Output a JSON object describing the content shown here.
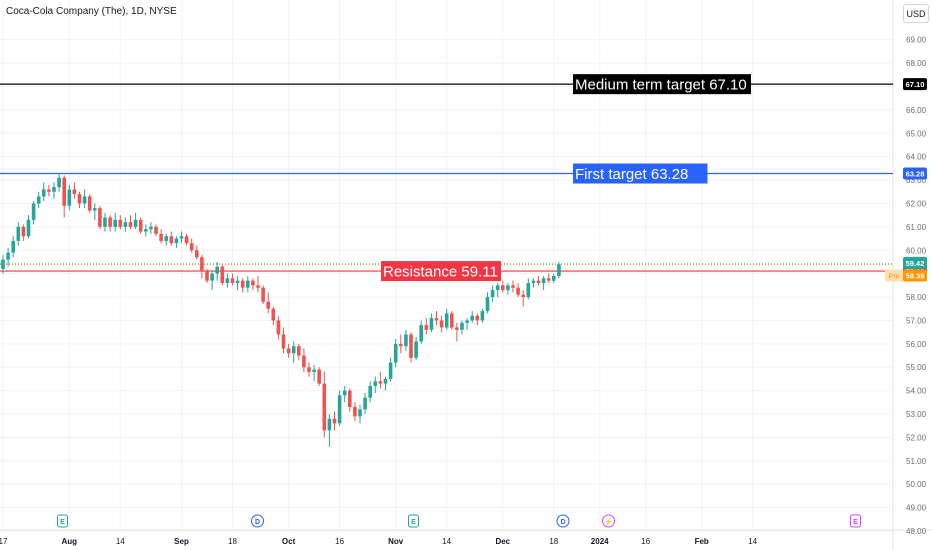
{
  "header": {
    "title": "Coca-Cola Company (The), 1D, NYSE",
    "currency": "USD"
  },
  "colors": {
    "up": "#26a69a",
    "down": "#ef5350",
    "target_medium": "#000000",
    "target_first": "#2962ff",
    "resistance": "#f23645",
    "pre": "#ff9800",
    "grid": "#f0f3fa",
    "text": "#131722"
  },
  "chart_data": {
    "type": "candlestick",
    "title": "Coca-Cola Company (The), 1D, NYSE",
    "ylim": [
      48.0,
      69.5
    ],
    "grid": true,
    "y_ticks": [
      "69.00",
      "68.00",
      "67.00",
      "66.00",
      "65.00",
      "64.00",
      "63.00",
      "62.00",
      "61.00",
      "60.00",
      "59.00",
      "58.00",
      "57.00",
      "56.00",
      "55.00",
      "54.00",
      "53.00",
      "52.00",
      "51.00",
      "50.00",
      "49.00",
      "48.00"
    ],
    "x_ticks": [
      "17",
      "Aug",
      "14",
      "Sep",
      "18",
      "Oct",
      "16",
      "Nov",
      "14",
      "Dec",
      "18",
      "2024",
      "16",
      "Feb",
      "14"
    ],
    "x_tick_index": [
      0,
      13,
      23,
      35,
      45,
      56,
      66,
      77,
      87,
      98,
      108,
      117,
      126,
      137,
      147
    ],
    "candles": [
      [
        59.2,
        59.8,
        59.0,
        59.6
      ],
      [
        59.6,
        60.1,
        59.3,
        59.9
      ],
      [
        59.9,
        60.6,
        59.7,
        60.4
      ],
      [
        60.4,
        61.2,
        60.2,
        61.0
      ],
      [
        61.0,
        61.1,
        60.4,
        60.6
      ],
      [
        60.6,
        61.5,
        60.5,
        61.3
      ],
      [
        61.3,
        62.1,
        61.1,
        62.0
      ],
      [
        62.0,
        62.5,
        61.8,
        62.3
      ],
      [
        62.3,
        62.9,
        62.1,
        62.6
      ],
      [
        62.6,
        62.8,
        62.3,
        62.5
      ],
      [
        62.5,
        62.9,
        62.2,
        62.7
      ],
      [
        62.7,
        63.3,
        62.5,
        63.1
      ],
      [
        63.1,
        63.2,
        61.4,
        61.9
      ],
      [
        61.9,
        62.8,
        61.7,
        62.6
      ],
      [
        62.6,
        62.9,
        62.2,
        62.4
      ],
      [
        62.4,
        62.5,
        61.8,
        62.0
      ],
      [
        62.0,
        62.6,
        61.8,
        62.3
      ],
      [
        62.3,
        62.4,
        61.6,
        61.7
      ],
      [
        61.7,
        62.0,
        61.3,
        61.8
      ],
      [
        61.8,
        61.9,
        60.9,
        61.0
      ],
      [
        61.0,
        61.6,
        60.8,
        61.4
      ],
      [
        61.4,
        61.5,
        60.8,
        61.0
      ],
      [
        61.0,
        61.6,
        60.8,
        61.3
      ],
      [
        61.3,
        61.5,
        60.9,
        61.0
      ],
      [
        61.0,
        61.4,
        60.8,
        61.2
      ],
      [
        61.2,
        61.5,
        60.9,
        61.0
      ],
      [
        61.0,
        61.6,
        60.9,
        61.3
      ],
      [
        61.3,
        61.4,
        60.7,
        60.8
      ],
      [
        60.8,
        61.1,
        60.6,
        60.9
      ],
      [
        60.9,
        61.2,
        60.7,
        61.0
      ],
      [
        61.0,
        61.1,
        60.6,
        60.7
      ],
      [
        60.7,
        60.9,
        60.3,
        60.4
      ],
      [
        60.4,
        60.7,
        60.2,
        60.6
      ],
      [
        60.6,
        60.8,
        60.2,
        60.3
      ],
      [
        60.3,
        60.6,
        60.1,
        60.5
      ],
      [
        60.5,
        60.8,
        60.3,
        60.6
      ],
      [
        60.6,
        60.7,
        60.2,
        60.3
      ],
      [
        60.3,
        60.5,
        59.9,
        60.0
      ],
      [
        60.0,
        60.2,
        59.6,
        59.7
      ],
      [
        59.7,
        59.8,
        58.8,
        59.1
      ],
      [
        59.1,
        59.2,
        58.6,
        58.7
      ],
      [
        58.7,
        59.1,
        58.3,
        59.0
      ],
      [
        59.0,
        59.5,
        58.7,
        59.3
      ],
      [
        59.3,
        59.4,
        58.5,
        58.6
      ],
      [
        58.6,
        59.0,
        58.4,
        58.8
      ],
      [
        58.8,
        59.0,
        58.5,
        58.6
      ],
      [
        58.6,
        58.9,
        58.3,
        58.7
      ],
      [
        58.7,
        58.8,
        58.2,
        58.4
      ],
      [
        58.4,
        58.9,
        58.2,
        58.7
      ],
      [
        58.7,
        58.8,
        58.3,
        58.5
      ],
      [
        58.5,
        58.9,
        58.2,
        58.4
      ],
      [
        58.4,
        58.5,
        57.7,
        57.8
      ],
      [
        57.8,
        58.2,
        57.3,
        57.5
      ],
      [
        57.5,
        57.6,
        56.8,
        57.0
      ],
      [
        57.0,
        57.2,
        56.2,
        56.4
      ],
      [
        56.4,
        56.7,
        55.6,
        55.8
      ],
      [
        55.8,
        56.0,
        55.4,
        55.6
      ],
      [
        55.6,
        56.1,
        55.2,
        55.9
      ],
      [
        55.9,
        56.0,
        55.3,
        55.5
      ],
      [
        55.5,
        55.8,
        54.8,
        55.0
      ],
      [
        55.0,
        55.2,
        54.6,
        54.8
      ],
      [
        54.8,
        55.1,
        54.4,
        54.9
      ],
      [
        54.9,
        55.0,
        54.2,
        54.3
      ],
      [
        54.3,
        54.8,
        52.0,
        52.3
      ],
      [
        52.3,
        53.0,
        51.6,
        52.8
      ],
      [
        52.8,
        53.1,
        52.3,
        52.6
      ],
      [
        52.6,
        54.0,
        52.5,
        53.8
      ],
      [
        53.8,
        54.2,
        53.5,
        54.0
      ],
      [
        54.0,
        54.1,
        53.1,
        53.3
      ],
      [
        53.3,
        53.5,
        52.7,
        52.9
      ],
      [
        52.9,
        53.4,
        52.6,
        53.2
      ],
      [
        53.2,
        53.9,
        53.0,
        53.7
      ],
      [
        53.7,
        54.4,
        53.5,
        54.2
      ],
      [
        54.2,
        54.6,
        53.9,
        54.4
      ],
      [
        54.4,
        54.8,
        54.1,
        54.3
      ],
      [
        54.3,
        54.6,
        54.0,
        54.5
      ],
      [
        54.5,
        55.4,
        54.4,
        55.2
      ],
      [
        55.2,
        56.2,
        55.0,
        56.0
      ],
      [
        56.0,
        56.4,
        55.6,
        55.9
      ],
      [
        55.9,
        56.6,
        55.7,
        56.4
      ],
      [
        56.4,
        56.5,
        55.2,
        55.4
      ],
      [
        55.4,
        56.3,
        55.3,
        56.1
      ],
      [
        56.1,
        57.0,
        56.0,
        56.8
      ],
      [
        56.8,
        57.1,
        56.4,
        56.6
      ],
      [
        56.6,
        57.3,
        56.5,
        57.1
      ],
      [
        57.1,
        57.4,
        56.8,
        57.0
      ],
      [
        57.0,
        57.2,
        56.5,
        56.7
      ],
      [
        56.7,
        57.5,
        56.6,
        57.3
      ],
      [
        57.3,
        57.4,
        56.6,
        56.7
      ],
      [
        56.7,
        56.9,
        56.1,
        56.6
      ],
      [
        56.6,
        57.0,
        56.4,
        56.9
      ],
      [
        56.9,
        57.1,
        56.6,
        57.0
      ],
      [
        57.0,
        57.4,
        56.9,
        57.2
      ],
      [
        57.2,
        57.3,
        56.8,
        57.0
      ],
      [
        57.0,
        57.5,
        56.9,
        57.4
      ],
      [
        57.4,
        58.2,
        57.3,
        58.0
      ],
      [
        58.0,
        58.5,
        57.8,
        58.3
      ],
      [
        58.3,
        58.6,
        58.0,
        58.5
      ],
      [
        58.5,
        58.7,
        58.2,
        58.3
      ],
      [
        58.3,
        58.6,
        58.1,
        58.5
      ],
      [
        58.5,
        58.7,
        58.2,
        58.4
      ],
      [
        58.4,
        58.6,
        58.0,
        58.1
      ],
      [
        58.1,
        58.3,
        57.6,
        58.0
      ],
      [
        58.0,
        58.8,
        57.9,
        58.6
      ],
      [
        58.6,
        58.8,
        58.4,
        58.7
      ],
      [
        58.7,
        58.9,
        58.5,
        58.6
      ],
      [
        58.6,
        58.9,
        58.3,
        58.8
      ],
      [
        58.8,
        59.0,
        58.6,
        58.7
      ],
      [
        58.7,
        59.0,
        58.6,
        58.9
      ],
      [
        58.9,
        59.5,
        58.8,
        59.4
      ]
    ],
    "horizontal_lines": [
      {
        "label": "Medium term target 67.10",
        "value": 67.1,
        "badge": "67.10",
        "color": "#000000"
      },
      {
        "label": "First target 63.28",
        "value": 63.28,
        "badge": "63.28",
        "color": "#2962ff"
      },
      {
        "label": "Resistance 59.11",
        "value": 59.11,
        "badge": "59.11",
        "color": "#f23645"
      }
    ],
    "price_badges": [
      {
        "value": 59.42,
        "text": "59.42",
        "color": "#26a69a"
      },
      {
        "value": 59.39,
        "text": "59.39",
        "tag": "Pre",
        "color": "#ff9800"
      }
    ],
    "events": [
      {
        "label": "E",
        "index": 9,
        "color": "#26a69a"
      },
      {
        "label": "D",
        "index": 39,
        "color": "#2962ff"
      },
      {
        "label": "E",
        "index": 63,
        "color": "#26a69a"
      },
      {
        "label": "D",
        "index": 86,
        "color": "#2962ff"
      },
      {
        "label": "⚡",
        "index": 93,
        "color": "#e040fb"
      },
      {
        "label": "E",
        "index": 131,
        "color": "#e040fb"
      }
    ]
  }
}
